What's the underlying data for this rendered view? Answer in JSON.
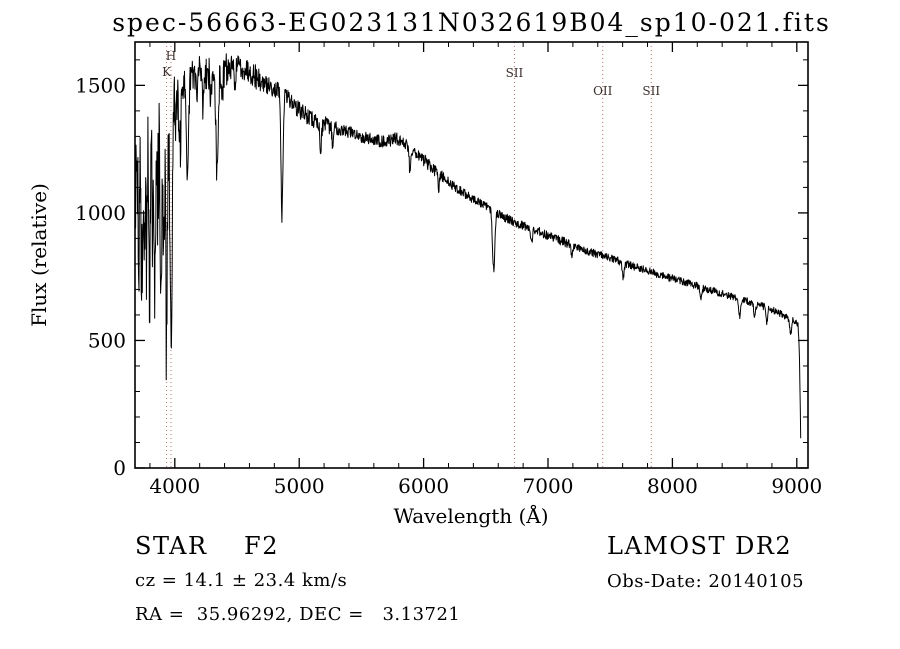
{
  "chart_data": {
    "type": "line",
    "title": "spec-56663-EG023131N032619B04_sp10-021.fits",
    "xlabel": "Wavelength (Å)",
    "ylabel": "Flux (relative)",
    "xlim": [
      3680,
      9090
    ],
    "ylim": [
      0,
      1670
    ],
    "x_ticks": [
      4000,
      5000,
      6000,
      7000,
      8000,
      9000
    ],
    "y_ticks": [
      0,
      500,
      1000,
      1500
    ],
    "x_minor_step": 200,
    "y_minor_step": 100,
    "grid": "off",
    "line_color": "#000000",
    "marker_line_color": "#b87868",
    "marker_label_color": "#3a2e2a",
    "noise_seed": 29,
    "sample_step": 3,
    "marker_lines": [
      {
        "label": "H",
        "wavelength": 3969,
        "label_y": 60
      },
      {
        "label": "K",
        "wavelength": 3934,
        "label_y": 76
      },
      {
        "label": "SII",
        "wavelength": 6730,
        "label_y": 77
      },
      {
        "label": "OII",
        "wavelength": 7440,
        "label_y": 95
      },
      {
        "label": "SII",
        "wavelength": 7830,
        "label_y": 95
      }
    ],
    "continuum": [
      [
        3685,
        1060
      ],
      [
        3710,
        1140
      ],
      [
        3740,
        1200
      ],
      [
        3780,
        1250
      ],
      [
        3820,
        1270
      ],
      [
        3860,
        1280
      ],
      [
        3900,
        1270
      ],
      [
        3940,
        1290
      ],
      [
        3980,
        1360
      ],
      [
        4020,
        1450
      ],
      [
        4060,
        1505
      ],
      [
        4100,
        1525
      ],
      [
        4150,
        1545
      ],
      [
        4200,
        1560
      ],
      [
        4260,
        1550
      ],
      [
        4320,
        1548
      ],
      [
        4380,
        1555
      ],
      [
        4440,
        1565
      ],
      [
        4500,
        1575
      ],
      [
        4560,
        1568
      ],
      [
        4620,
        1550
      ],
      [
        4680,
        1520
      ],
      [
        4740,
        1500
      ],
      [
        4800,
        1488
      ],
      [
        4860,
        1470
      ],
      [
        4920,
        1448
      ],
      [
        4980,
        1412
      ],
      [
        5050,
        1385
      ],
      [
        5120,
        1362
      ],
      [
        5200,
        1345
      ],
      [
        5300,
        1330
      ],
      [
        5400,
        1318
      ],
      [
        5500,
        1300
      ],
      [
        5600,
        1286
      ],
      [
        5700,
        1280
      ],
      [
        5780,
        1292
      ],
      [
        5860,
        1268
      ],
      [
        5940,
        1235
      ],
      [
        6020,
        1200
      ],
      [
        6100,
        1160
      ],
      [
        6180,
        1128
      ],
      [
        6260,
        1098
      ],
      [
        6340,
        1072
      ],
      [
        6420,
        1048
      ],
      [
        6500,
        1026
      ],
      [
        6580,
        1002
      ],
      [
        6660,
        982
      ],
      [
        6740,
        962
      ],
      [
        6820,
        948
      ],
      [
        6900,
        932
      ],
      [
        6980,
        916
      ],
      [
        7060,
        900
      ],
      [
        7140,
        884
      ],
      [
        7220,
        868
      ],
      [
        7300,
        853
      ],
      [
        7380,
        841
      ],
      [
        7460,
        828
      ],
      [
        7540,
        816
      ],
      [
        7620,
        803
      ],
      [
        7700,
        789
      ],
      [
        7780,
        776
      ],
      [
        7860,
        763
      ],
      [
        7940,
        751
      ],
      [
        8020,
        740
      ],
      [
        8100,
        728
      ],
      [
        8180,
        716
      ],
      [
        8260,
        704
      ],
      [
        8340,
        692
      ],
      [
        8420,
        680
      ],
      [
        8500,
        668
      ],
      [
        8580,
        656
      ],
      [
        8660,
        644
      ],
      [
        8740,
        632
      ],
      [
        8820,
        618
      ],
      [
        8900,
        598
      ],
      [
        8960,
        582
      ],
      [
        9000,
        570
      ],
      [
        9012,
        556
      ],
      [
        9022,
        420
      ],
      [
        9032,
        90
      ]
    ],
    "absorption_lines": [
      [
        3712,
        330,
        5
      ],
      [
        3734,
        360,
        5
      ],
      [
        3750,
        390,
        6
      ],
      [
        3771,
        360,
        6
      ],
      [
        3798,
        470,
        7
      ],
      [
        3820,
        250,
        5
      ],
      [
        3835,
        540,
        7
      ],
      [
        3860,
        280,
        5
      ],
      [
        3889,
        620,
        7
      ],
      [
        3910,
        300,
        5
      ],
      [
        3933,
        760,
        7
      ],
      [
        3970,
        870,
        8
      ],
      [
        4045,
        180,
        5
      ],
      [
        4101,
        430,
        9
      ],
      [
        4178,
        120,
        5
      ],
      [
        4226,
        150,
        5
      ],
      [
        4290,
        110,
        6
      ],
      [
        4340,
        420,
        9
      ],
      [
        4383,
        130,
        5
      ],
      [
        4481,
        90,
        5
      ],
      [
        4861,
        480,
        8
      ],
      [
        5172,
        95,
        7
      ],
      [
        5270,
        70,
        6
      ],
      [
        5890,
        90,
        6
      ],
      [
        6122,
        60,
        5
      ],
      [
        6563,
        230,
        9
      ],
      [
        6867,
        50,
        8
      ],
      [
        7190,
        40,
        7
      ],
      [
        7605,
        55,
        9
      ],
      [
        8230,
        45,
        7
      ],
      [
        8542,
        65,
        8
      ],
      [
        8662,
        55,
        7
      ],
      [
        8760,
        60,
        6
      ],
      [
        8950,
        65,
        7
      ]
    ],
    "noise_bands": [
      [
        3680,
        3940,
        240
      ],
      [
        3940,
        4060,
        160
      ],
      [
        4060,
        4420,
        66
      ],
      [
        4420,
        4700,
        48
      ],
      [
        4700,
        5300,
        34
      ],
      [
        5300,
        6200,
        24
      ],
      [
        6200,
        7200,
        18
      ],
      [
        7200,
        8200,
        15
      ],
      [
        8200,
        9100,
        14
      ]
    ]
  },
  "footer": {
    "class_label": "STAR    F2",
    "survey": "LAMOST DR2",
    "cz": "cz = 14.1 ± 23.4 km/s",
    "obs_date": "Obs-Date: 20140105",
    "coords": "RA =  35.96292, DEC =   3.13721"
  }
}
